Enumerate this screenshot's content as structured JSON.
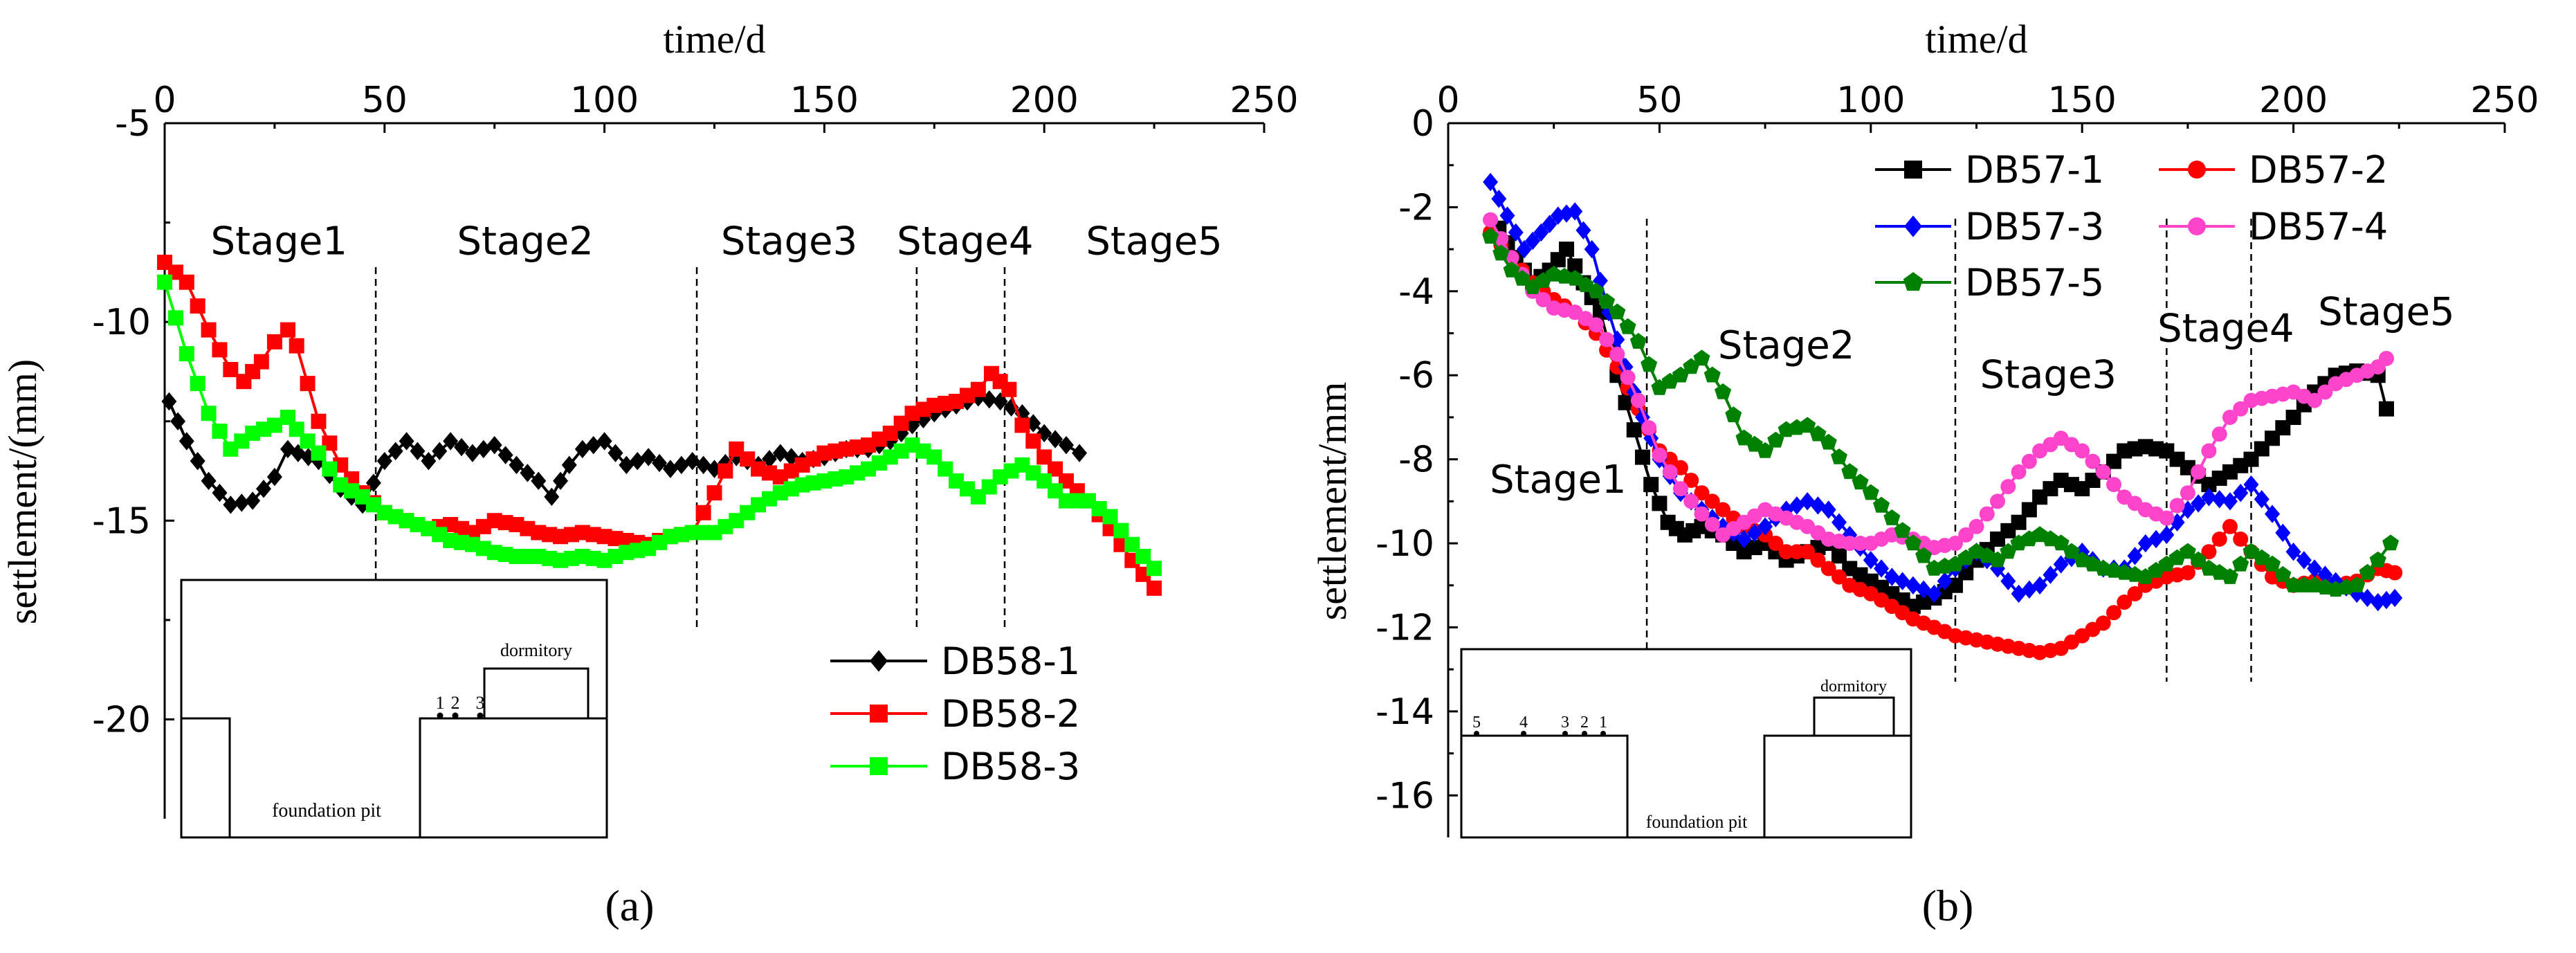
{
  "chart_data": [
    {
      "type": "line",
      "panel_label": "(a)",
      "xlabel": "time/d",
      "ylabel": "settlement/(mm)",
      "xlim": [
        0,
        250
      ],
      "ylim": [
        -22.5,
        -5
      ],
      "xticks": [
        0,
        50,
        100,
        150,
        200,
        250
      ],
      "yticks": [
        -5,
        -10,
        -15,
        -20
      ],
      "stage_lines": [
        48,
        121,
        171,
        191
      ],
      "stages": [
        {
          "label": "Stage1",
          "x": 26,
          "y": -8.3
        },
        {
          "label": "Stage2",
          "x": 82,
          "y": -8.3
        },
        {
          "label": "Stage3",
          "x": 142,
          "y": -8.3
        },
        {
          "label": "Stage4",
          "x": 182,
          "y": -8.3
        },
        {
          "label": "Stage5",
          "x": 225,
          "y": -8.3
        }
      ],
      "inset": {
        "label_building": "dormitory",
        "label_pit": "foundation pit",
        "points": [
          "1",
          "2",
          "3"
        ]
      },
      "series": [
        {
          "name": "DB58-1",
          "color": "#000000",
          "marker": "diamond",
          "x": [
            1,
            5,
            10,
            15,
            20,
            25,
            28,
            35,
            40,
            45,
            50,
            55,
            60,
            65,
            70,
            75,
            80,
            85,
            88,
            92,
            95,
            100,
            105,
            110,
            115,
            120,
            125,
            130,
            135,
            140,
            145,
            150,
            155,
            160,
            165,
            170,
            175,
            180,
            185,
            190,
            195,
            200,
            205,
            208
          ],
          "y": [
            -12.0,
            -13.0,
            -14.0,
            -14.6,
            -14.5,
            -13.9,
            -13.2,
            -13.5,
            -14.2,
            -14.6,
            -13.5,
            -13.0,
            -13.5,
            -13.0,
            -13.3,
            -13.1,
            -13.6,
            -14.0,
            -14.4,
            -13.6,
            -13.2,
            -13.0,
            -13.6,
            -13.4,
            -13.7,
            -13.5,
            -13.7,
            -13.4,
            -13.6,
            -13.3,
            -13.5,
            -13.4,
            -13.2,
            -13.2,
            -13.0,
            -12.6,
            -12.3,
            -12.1,
            -11.9,
            -12.0,
            -12.3,
            -12.8,
            -13.1,
            -13.3
          ]
        },
        {
          "name": "DB58-2",
          "color": "#ff0000",
          "marker": "square",
          "x": [
            0,
            5,
            10,
            15,
            18,
            22,
            25,
            28,
            30,
            35,
            40,
            45,
            50,
            55,
            60,
            65,
            70,
            75,
            80,
            85,
            90,
            95,
            100,
            105,
            110,
            115,
            120,
            125,
            130,
            135,
            140,
            145,
            150,
            155,
            160,
            165,
            170,
            175,
            180,
            185,
            188,
            192,
            195,
            200,
            205,
            210,
            215,
            220,
            225
          ],
          "y": [
            -8.5,
            -9.0,
            -10.2,
            -11.2,
            -11.5,
            -11.0,
            -10.5,
            -10.2,
            -10.6,
            -12.5,
            -13.6,
            -14.3,
            -14.8,
            -15.0,
            -15.2,
            -15.1,
            -15.3,
            -15.0,
            -15.1,
            -15.3,
            -15.4,
            -15.3,
            -15.4,
            -15.5,
            -15.6,
            -15.4,
            -15.3,
            -14.3,
            -13.2,
            -13.7,
            -13.9,
            -13.6,
            -13.3,
            -13.2,
            -13.1,
            -12.8,
            -12.3,
            -12.1,
            -12.0,
            -11.7,
            -11.3,
            -11.7,
            -12.6,
            -13.4,
            -14.0,
            -14.5,
            -15.2,
            -16.0,
            -16.7
          ]
        },
        {
          "name": "DB58-3",
          "color": "#00ff00",
          "marker": "square",
          "x": [
            0,
            5,
            10,
            15,
            20,
            25,
            28,
            30,
            35,
            40,
            45,
            50,
            55,
            60,
            65,
            70,
            75,
            80,
            85,
            90,
            95,
            100,
            105,
            110,
            115,
            120,
            125,
            130,
            135,
            140,
            145,
            150,
            155,
            160,
            165,
            170,
            175,
            180,
            185,
            190,
            195,
            200,
            205,
            210,
            215,
            220,
            225
          ],
          "y": [
            -9.0,
            -10.8,
            -12.3,
            -13.2,
            -12.8,
            -12.6,
            -12.4,
            -12.7,
            -13.3,
            -14.1,
            -14.4,
            -14.8,
            -15.0,
            -15.2,
            -15.5,
            -15.6,
            -15.8,
            -15.9,
            -15.9,
            -16.0,
            -15.9,
            -16.0,
            -15.8,
            -15.7,
            -15.4,
            -15.3,
            -15.3,
            -15.0,
            -14.6,
            -14.3,
            -14.1,
            -14.0,
            -13.9,
            -13.7,
            -13.4,
            -13.1,
            -13.4,
            -14.0,
            -14.4,
            -13.9,
            -13.6,
            -14.0,
            -14.5,
            -14.5,
            -14.9,
            -15.6,
            -16.2
          ]
        }
      ]
    },
    {
      "type": "line",
      "panel_label": "(b)",
      "xlabel": "time/d",
      "ylabel": "settlement/mm",
      "xlim": [
        0,
        250
      ],
      "ylim": [
        -17,
        0
      ],
      "xticks": [
        0,
        50,
        100,
        150,
        200,
        250
      ],
      "yticks": [
        0,
        -2,
        -4,
        -6,
        -8,
        -10,
        -12,
        -14,
        -16
      ],
      "stage_lines": [
        47,
        120,
        170,
        190
      ],
      "stages": [
        {
          "label": "Stage1",
          "x": 26,
          "y": -8.8
        },
        {
          "label": "Stage2",
          "x": 80,
          "y": -5.6
        },
        {
          "label": "Stage3",
          "x": 142,
          "y": -6.3
        },
        {
          "label": "Stage4",
          "x": 184,
          "y": -5.2
        },
        {
          "label": "Stage5",
          "x": 222,
          "y": -4.8
        }
      ],
      "inset": {
        "label_building": "dormitory",
        "label_pit": "foundation pit",
        "points": [
          "5",
          "4",
          "3",
          "2",
          "1"
        ]
      },
      "series": [
        {
          "name": "DB57-1",
          "color": "#000000",
          "marker": "square",
          "x": [
            12,
            16,
            20,
            24,
            28,
            32,
            36,
            40,
            44,
            48,
            52,
            56,
            60,
            65,
            70,
            75,
            80,
            85,
            90,
            95,
            100,
            105,
            110,
            115,
            120,
            125,
            130,
            135,
            140,
            145,
            150,
            155,
            160,
            165,
            170,
            175,
            180,
            185,
            190,
            195,
            200,
            205,
            210,
            215,
            220,
            222
          ],
          "y": [
            -2.5,
            -3.2,
            -3.8,
            -3.5,
            -3.0,
            -3.8,
            -4.5,
            -6.0,
            -7.3,
            -8.6,
            -9.5,
            -9.8,
            -9.6,
            -9.8,
            -10.2,
            -10.0,
            -10.4,
            -10.2,
            -10.0,
            -10.6,
            -10.9,
            -11.2,
            -11.5,
            -11.3,
            -11.0,
            -10.4,
            -9.9,
            -9.5,
            -8.9,
            -8.5,
            -8.7,
            -8.3,
            -7.8,
            -7.7,
            -7.8,
            -8.2,
            -8.6,
            -8.3,
            -8.0,
            -7.5,
            -7.0,
            -6.4,
            -6.0,
            -5.9,
            -6.0,
            -6.8
          ]
        },
        {
          "name": "DB57-2",
          "color": "#ff0000",
          "marker": "circle",
          "x": [
            10,
            15,
            20,
            25,
            30,
            35,
            40,
            45,
            50,
            55,
            60,
            65,
            70,
            75,
            80,
            85,
            90,
            95,
            100,
            105,
            110,
            115,
            120,
            125,
            130,
            135,
            140,
            145,
            150,
            155,
            160,
            165,
            170,
            175,
            180,
            185,
            190,
            195,
            200,
            205,
            210,
            215,
            220,
            224
          ],
          "y": [
            -2.6,
            -3.2,
            -3.8,
            -4.2,
            -4.5,
            -5.0,
            -5.8,
            -6.8,
            -7.8,
            -8.2,
            -8.8,
            -9.2,
            -9.6,
            -9.8,
            -10.2,
            -10.2,
            -10.6,
            -11.0,
            -11.2,
            -11.5,
            -11.8,
            -12.0,
            -12.2,
            -12.3,
            -12.4,
            -12.5,
            -12.6,
            -12.5,
            -12.2,
            -11.9,
            -11.4,
            -11.0,
            -10.8,
            -10.7,
            -10.2,
            -9.6,
            -10.2,
            -10.8,
            -11.0,
            -10.9,
            -11.0,
            -10.9,
            -10.6,
            -10.7
          ]
        },
        {
          "name": "DB57-3",
          "color": "#0000ff",
          "marker": "diamond",
          "x": [
            10,
            14,
            18,
            22,
            26,
            30,
            34,
            38,
            42,
            46,
            50,
            55,
            60,
            65,
            70,
            75,
            80,
            85,
            90,
            95,
            100,
            105,
            110,
            115,
            120,
            125,
            130,
            135,
            140,
            145,
            150,
            155,
            160,
            165,
            170,
            175,
            180,
            185,
            190,
            195,
            200,
            205,
            210,
            215,
            220,
            224
          ],
          "y": [
            -1.4,
            -2.2,
            -3.0,
            -2.6,
            -2.2,
            -2.1,
            -3.0,
            -4.5,
            -5.8,
            -7.0,
            -8.0,
            -8.8,
            -9.2,
            -9.6,
            -9.9,
            -9.6,
            -9.2,
            -9.0,
            -9.2,
            -9.8,
            -10.4,
            -10.8,
            -11.0,
            -11.2,
            -10.6,
            -10.2,
            -10.6,
            -11.2,
            -11.0,
            -10.5,
            -10.2,
            -10.6,
            -10.6,
            -10.0,
            -9.8,
            -9.2,
            -8.9,
            -9.0,
            -8.6,
            -9.3,
            -10.2,
            -10.6,
            -10.9,
            -11.2,
            -11.4,
            -11.3
          ]
        },
        {
          "name": "DB57-4",
          "color": "#ff44cc",
          "marker": "circle",
          "x": [
            10,
            15,
            20,
            25,
            30,
            35,
            40,
            45,
            50,
            55,
            60,
            65,
            70,
            75,
            80,
            85,
            90,
            95,
            100,
            105,
            110,
            115,
            120,
            125,
            130,
            135,
            140,
            145,
            150,
            155,
            160,
            165,
            170,
            175,
            180,
            185,
            190,
            195,
            200,
            205,
            210,
            215,
            220,
            222
          ],
          "y": [
            -2.3,
            -3.2,
            -4.0,
            -4.4,
            -4.5,
            -4.8,
            -5.5,
            -6.6,
            -7.9,
            -8.7,
            -9.3,
            -9.8,
            -9.5,
            -9.2,
            -9.4,
            -9.6,
            -9.9,
            -10.0,
            -10.0,
            -9.8,
            -9.9,
            -10.1,
            -10.0,
            -9.6,
            -9.0,
            -8.3,
            -7.8,
            -7.5,
            -7.8,
            -8.3,
            -8.9,
            -9.2,
            -9.4,
            -8.8,
            -7.8,
            -7.0,
            -6.6,
            -6.5,
            -6.4,
            -6.6,
            -6.2,
            -6.0,
            -5.8,
            -5.6
          ]
        },
        {
          "name": "DB57-5",
          "color": "#008000",
          "marker": "pentagon",
          "x": [
            10,
            15,
            20,
            25,
            30,
            35,
            40,
            45,
            50,
            55,
            60,
            65,
            70,
            75,
            80,
            85,
            90,
            95,
            100,
            105,
            110,
            115,
            120,
            125,
            130,
            135,
            140,
            145,
            150,
            155,
            160,
            165,
            170,
            175,
            180,
            185,
            190,
            195,
            200,
            205,
            210,
            215,
            220,
            223
          ],
          "y": [
            -2.7,
            -3.5,
            -3.9,
            -3.6,
            -3.7,
            -4.0,
            -4.5,
            -5.2,
            -6.3,
            -6.0,
            -5.6,
            -6.4,
            -7.5,
            -7.8,
            -7.3,
            -7.2,
            -7.6,
            -8.3,
            -8.8,
            -9.4,
            -10.0,
            -10.6,
            -10.5,
            -10.2,
            -10.4,
            -10.0,
            -9.8,
            -10.0,
            -10.4,
            -10.6,
            -10.7,
            -10.8,
            -10.5,
            -10.2,
            -10.6,
            -10.8,
            -10.2,
            -10.5,
            -11.0,
            -11.0,
            -11.1,
            -11.0,
            -10.4,
            -10.0
          ]
        }
      ]
    }
  ]
}
